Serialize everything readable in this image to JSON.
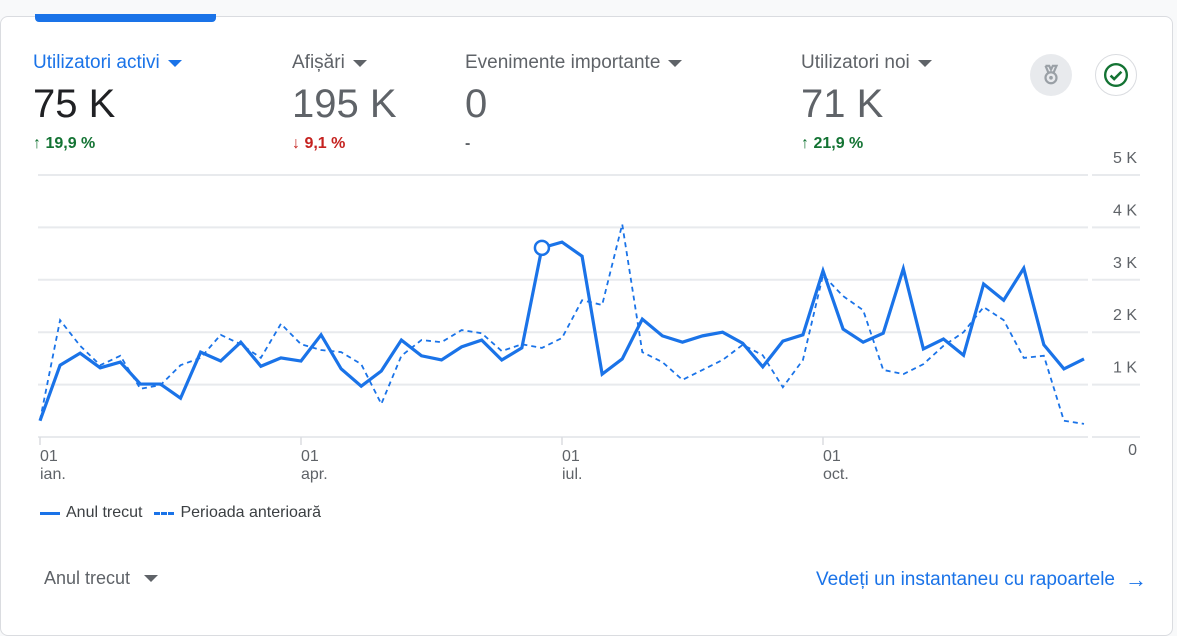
{
  "metrics": [
    {
      "label": "Utilizatori activi",
      "value": "75 K",
      "change": "19,9 %",
      "direction": "up",
      "active": true
    },
    {
      "label": "Afișări",
      "value": "195 K",
      "change": "9,1 %",
      "direction": "down",
      "active": false
    },
    {
      "label": "Evenimente importante",
      "value": "0",
      "change": "-",
      "direction": "none",
      "active": false
    },
    {
      "label": "Utilizatori noi",
      "value": "71 K",
      "change": "21,9 %",
      "direction": "up",
      "active": false
    }
  ],
  "icons": {
    "insights": "medal-icon",
    "status": "check-circle-icon"
  },
  "period_selector": "Anul trecut",
  "link": "Vedeți un instantaneu cu rapoartele",
  "colors": {
    "accent": "#1a73e8",
    "up": "#137333",
    "down": "#c5221f"
  },
  "chart_data": {
    "type": "line",
    "ylim": [
      0,
      5000
    ],
    "yticks": [
      "0",
      "1 K",
      "2 K",
      "3 K",
      "4 K",
      "5 K"
    ],
    "xticks": [
      {
        "day": "01",
        "month": "ian.",
        "index": 0
      },
      {
        "day": "01",
        "month": "apr.",
        "index": 13
      },
      {
        "day": "01",
        "month": "iul.",
        "index": 26
      },
      {
        "day": "01",
        "month": "oct.",
        "index": 39
      }
    ],
    "highlight_index": 25,
    "series": [
      {
        "name": "Anul trecut",
        "style": "solid",
        "values": [
          310,
          1370,
          1600,
          1320,
          1430,
          1010,
          1010,
          740,
          1620,
          1450,
          1810,
          1350,
          1510,
          1450,
          1950,
          1300,
          970,
          1260,
          1850,
          1550,
          1470,
          1720,
          1850,
          1470,
          1700,
          3610,
          3720,
          3450,
          1200,
          1490,
          2250,
          1930,
          1810,
          1930,
          2000,
          1790,
          1340,
          1830,
          1950,
          3170,
          2060,
          1810,
          1980,
          3210,
          1680,
          1870,
          1560,
          2920,
          2610,
          3220,
          1760,
          1300,
          1490
        ]
      },
      {
        "name": "Perioada anterioară",
        "style": "dashed",
        "values": [
          320,
          2230,
          1740,
          1370,
          1550,
          920,
          990,
          1370,
          1510,
          1950,
          1770,
          1510,
          2160,
          1770,
          1660,
          1620,
          1390,
          630,
          1550,
          1850,
          1810,
          2040,
          1980,
          1640,
          1770,
          1700,
          1890,
          2610,
          2520,
          4060,
          1620,
          1430,
          1090,
          1280,
          1470,
          1760,
          1560,
          950,
          1470,
          3090,
          2690,
          2420,
          1280,
          1200,
          1390,
          1740,
          2000,
          2480,
          2230,
          1510,
          1550,
          310,
          250
        ]
      }
    ]
  }
}
